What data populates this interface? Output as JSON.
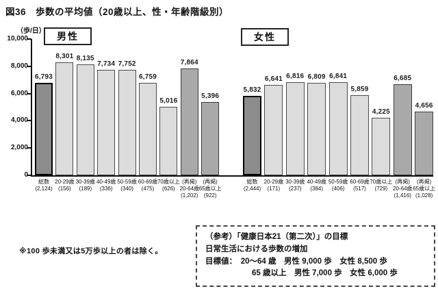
{
  "figure": {
    "title": "図36　歩数の平均値（20歳以上、性・年齢階級別）",
    "y_unit_label": "（歩/日）",
    "note": "※100 歩未満又は5万歩以上の者は除く。"
  },
  "reference_box": {
    "line1": "（参考）「健康日本21（第二次）」の目標",
    "line2": "日常生活における歩数の増加",
    "line3": "目標値：　20～64 歳　男性 9,000 歩　女性 8,500 歩",
    "line4": "65 歳以上　男性 7,000 歩　女性 6,000 歩"
  },
  "colors": {
    "total_bar": "#8c8c8c",
    "age_bar": "#dcdcdc",
    "rep_bar": "#a9a9a9",
    "axis": "#111111"
  },
  "chart_data": {
    "type": "bar",
    "title": "図36　歩数の平均値（20歳以上、性・年齢階級別）",
    "xlabel": "",
    "ylabel": "歩/日",
    "ylim": [
      0,
      10000
    ],
    "ytick_values": [
      0,
      2000,
      4000,
      6000,
      8000,
      10000
    ],
    "ytick_labels_top_to_bottom": [
      "10,000",
      "8,000",
      "6,000",
      "4,000",
      "2,000",
      "0"
    ],
    "grid": false,
    "legend": "none",
    "groups": [
      {
        "name": "男性",
        "bars": [
          {
            "category_lines": [
              "総数",
              "(2,124)"
            ],
            "value": 6793,
            "value_label": "6,793",
            "style": "total"
          },
          {
            "category_lines": [
              "20-29歳",
              "(156)"
            ],
            "value": 8301,
            "value_label": "8,301",
            "style": "age"
          },
          {
            "category_lines": [
              "30-39歳",
              "(189)"
            ],
            "value": 8135,
            "value_label": "8,135",
            "style": "age"
          },
          {
            "category_lines": [
              "40-49歳",
              "(336)"
            ],
            "value": 7734,
            "value_label": "7,734",
            "style": "age"
          },
          {
            "category_lines": [
              "50-59歳",
              "(340)"
            ],
            "value": 7752,
            "value_label": "7,752",
            "style": "age"
          },
          {
            "category_lines": [
              "60-69歳",
              "(475)"
            ],
            "value": 6759,
            "value_label": "6,759",
            "style": "age"
          },
          {
            "category_lines": [
              "70歳以上",
              "(626)"
            ],
            "value": 5016,
            "value_label": "5,016",
            "style": "age"
          },
          {
            "category_lines": [
              "(再掲)",
              "20-64歳",
              "(1,202)"
            ],
            "value": 7864,
            "value_label": "7,864",
            "style": "rep"
          },
          {
            "category_lines": [
              "(再掲)",
              "65歳以上",
              "(922)"
            ],
            "value": 5396,
            "value_label": "5,396",
            "style": "rep"
          }
        ]
      },
      {
        "name": "女性",
        "bars": [
          {
            "category_lines": [
              "総数",
              "(2,444)"
            ],
            "value": 5832,
            "value_label": "5,832",
            "style": "total"
          },
          {
            "category_lines": [
              "20-29歳",
              "(171)"
            ],
            "value": 6641,
            "value_label": "6,641",
            "style": "age"
          },
          {
            "category_lines": [
              "30-39歳",
              "(237)"
            ],
            "value": 6816,
            "value_label": "6,816",
            "style": "age"
          },
          {
            "category_lines": [
              "40-49歳",
              "(384)"
            ],
            "value": 6809,
            "value_label": "6,809",
            "style": "age"
          },
          {
            "category_lines": [
              "50-59歳",
              "(406)"
            ],
            "value": 6841,
            "value_label": "6,841",
            "style": "age"
          },
          {
            "category_lines": [
              "60-69歳",
              "(517)"
            ],
            "value": 5859,
            "value_label": "5,859",
            "style": "age"
          },
          {
            "category_lines": [
              "70歳以上",
              "(729)"
            ],
            "value": 4225,
            "value_label": "4,225",
            "style": "age"
          },
          {
            "category_lines": [
              "(再掲)",
              "20-64歳",
              "(1,416)"
            ],
            "value": 6685,
            "value_label": "6,685",
            "style": "rep"
          },
          {
            "category_lines": [
              "(再掲)",
              "65歳以上",
              "(1,028)"
            ],
            "value": 4656,
            "value_label": "4,656",
            "style": "rep"
          }
        ]
      }
    ]
  }
}
